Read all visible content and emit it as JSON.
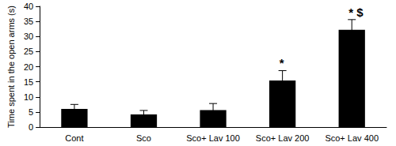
{
  "chart_data": {
    "type": "bar",
    "y_label": "Time spent in the open arms (s)",
    "categories": [
      "Cont",
      "Sco",
      "Sco+ Lav 100",
      "Sco+ Lav 200",
      "Sco+ Lav 400"
    ],
    "values": [
      6,
      4.2,
      5.6,
      15.4,
      32.2
    ],
    "errors": [
      1.5,
      1.3,
      2.2,
      3.3,
      3.4
    ],
    "color": "#000000",
    "ylim": [
      0,
      40
    ],
    "yticks": [
      0,
      5,
      10,
      15,
      20,
      25,
      30,
      35,
      40
    ],
    "grid": false,
    "annotations": [
      {
        "category": "Sco+ Lav 200",
        "text": "*"
      },
      {
        "category": "Sco+ Lav 400",
        "text": "* $"
      }
    ]
  }
}
